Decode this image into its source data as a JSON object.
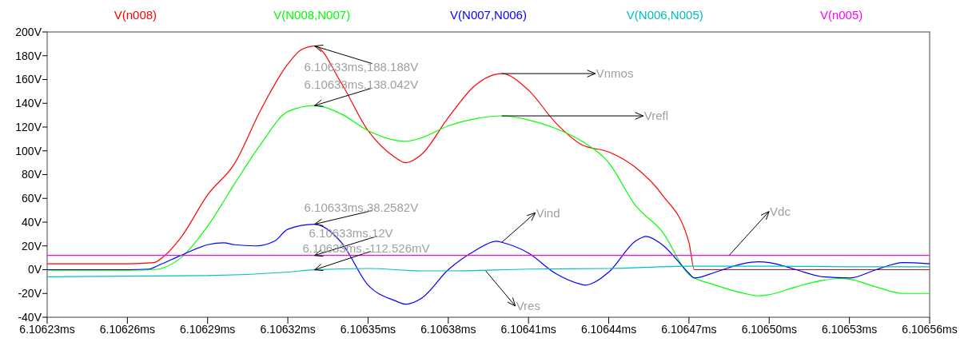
{
  "chart_data": {
    "type": "line",
    "legend": "top",
    "xlim": [
      6.10623,
      6.10656
    ],
    "xticks": [
      {
        "value": 6.10623,
        "label": "6.10623ms"
      },
      {
        "value": 6.10626,
        "label": "6.10626ms"
      },
      {
        "value": 6.10629,
        "label": "6.10629ms"
      },
      {
        "value": 6.10632,
        "label": "6.10632ms"
      },
      {
        "value": 6.10635,
        "label": "6.10635ms"
      },
      {
        "value": 6.10638,
        "label": "6.10638ms"
      },
      {
        "value": 6.10641,
        "label": "6.10641ms"
      },
      {
        "value": 6.10644,
        "label": "6.10644ms"
      },
      {
        "value": 6.10647,
        "label": "6.10647ms"
      },
      {
        "value": 6.1065,
        "label": "6.10650ms"
      },
      {
        "value": 6.10653,
        "label": "6.10653ms"
      },
      {
        "value": 6.10656,
        "label": "6.10656ms"
      }
    ],
    "ylim": [
      -40,
      200
    ],
    "yticks": [
      {
        "value": -40,
        "label": "-40V"
      },
      {
        "value": -20,
        "label": "-20V"
      },
      {
        "value": 0,
        "label": "0V"
      },
      {
        "value": 20,
        "label": "20V"
      },
      {
        "value": 40,
        "label": "40V"
      },
      {
        "value": 60,
        "label": "60V"
      },
      {
        "value": 80,
        "label": "80V"
      },
      {
        "value": 100,
        "label": "100V"
      },
      {
        "value": 120,
        "label": "120V"
      },
      {
        "value": 140,
        "label": "140V"
      },
      {
        "value": 160,
        "label": "160V"
      },
      {
        "value": 180,
        "label": "180V"
      },
      {
        "value": 200,
        "label": "200V"
      }
    ],
    "series": [
      {
        "name": "V(n008)",
        "color": "#ff0000",
        "x": [
          6.10623,
          6.10624,
          6.10625,
          6.10626,
          6.10627,
          6.106274,
          6.10628,
          6.10629,
          6.1063,
          6.10631,
          6.10632,
          6.106325,
          6.10633,
          6.10634,
          6.10635,
          6.10636,
          6.106364,
          6.10637,
          6.10638,
          6.10639,
          6.1064,
          6.10641,
          6.10642,
          6.10643,
          6.10644,
          6.10645,
          6.10646,
          6.10647,
          6.106472,
          6.10656
        ],
        "values": [
          5,
          5,
          5,
          5,
          6,
          12,
          27,
          63,
          89,
          135,
          173,
          185,
          188.188,
          157,
          117,
          94.7,
          90,
          97,
          128,
          155,
          165,
          151,
          124,
          105,
          99,
          86,
          63,
          23,
          0,
          0
        ]
      },
      {
        "name": "V(N008,N007)",
        "color": "#00ff00",
        "x": [
          6.10623,
          6.10626,
          6.10627,
          6.10628,
          6.10629,
          6.1063,
          6.10631,
          6.10632,
          6.10633,
          6.10634,
          6.10635,
          6.10636,
          6.106364,
          6.10637,
          6.10638,
          6.10639,
          6.1064,
          6.10641,
          6.10642,
          6.10643,
          6.10644,
          6.10645,
          6.10646,
          6.10647,
          6.10648,
          6.10649,
          6.106496,
          6.1065,
          6.10651,
          6.10652,
          6.106526,
          6.10653,
          6.10654,
          6.10655,
          6.10656
        ],
        "values": [
          -0.5,
          -0.5,
          0,
          10,
          36.5,
          72,
          106,
          133,
          138.042,
          131,
          117,
          109,
          108,
          111,
          121,
          127,
          129.4,
          126,
          119,
          108,
          90,
          54,
          32,
          -4,
          -13,
          -19.6,
          -22,
          -21,
          -14.5,
          -9,
          -7.4,
          -8,
          -14.5,
          -20,
          -20
        ]
      },
      {
        "name": "V(N007,N006)",
        "color": "#0000ff",
        "x": [
          6.10623,
          6.10626,
          6.106268,
          6.106272,
          6.10628,
          6.10629,
          6.106296,
          6.1063,
          6.106308,
          6.106315,
          6.10632,
          6.10633,
          6.10634,
          6.10635,
          6.10636,
          6.106364,
          6.10637,
          6.10638,
          6.10639,
          6.106398,
          6.1064,
          6.10641,
          6.10642,
          6.10643,
          6.106431,
          6.10644,
          6.10645,
          6.106454,
          6.10646,
          6.10647,
          6.106472,
          6.10648,
          6.10649,
          6.106496,
          6.1065,
          6.10651,
          6.10652,
          6.10653,
          6.10654,
          6.10655,
          6.10656
        ],
        "values": [
          0,
          0,
          0.5,
          4,
          12,
          21,
          22.6,
          21,
          20,
          24,
          34,
          38.2582,
          23,
          -13,
          -26,
          -29,
          -24,
          0,
          16,
          24,
          23,
          14,
          -3,
          -12.5,
          -13,
          -2,
          24,
          28,
          21,
          -3,
          -7,
          -2,
          5,
          6.6,
          6,
          0,
          -6,
          -7,
          0,
          6,
          5
        ]
      },
      {
        "name": "V(N006,N005)",
        "color": "#00c0c0",
        "x": [
          6.10623,
          6.10629,
          6.10632,
          6.10633,
          6.10635,
          6.10637,
          6.10638,
          6.10641,
          6.10644,
          6.10647,
          6.1065,
          6.10653,
          6.10656
        ],
        "values": [
          -6,
          -5,
          -2,
          -0.112526,
          1,
          -1,
          -1,
          0.5,
          1,
          3,
          3,
          2.5,
          2.5
        ]
      },
      {
        "name": "V(n005)",
        "color": "#ff00ff",
        "x": [
          6.10623,
          6.10656
        ],
        "values": [
          12,
          12
        ]
      }
    ],
    "annotations": [
      {
        "text": "6.10633ms,188.188V",
        "x": 6.10633,
        "y": 188.188
      },
      {
        "text": "6.10633ms,138.042V",
        "x": 6.10633,
        "y": 138.042
      },
      {
        "text": "6.10633ms,38.2582V",
        "x": 6.10633,
        "y": 38.2582
      },
      {
        "text": "6.10633ms,12V",
        "x": 6.10633,
        "y": 12
      },
      {
        "text": "6.10633ms,-112.526mV",
        "x": 6.10633,
        "y": -0.112526
      },
      {
        "text": "Vnmos",
        "x": 6.1064,
        "y": 165
      },
      {
        "text": "Vrefl",
        "x": 6.1064,
        "y": 129.4
      },
      {
        "text": "Vind",
        "x": 6.1064,
        "y": 23
      },
      {
        "text": "Vres",
        "x": 6.106394,
        "y": -1
      },
      {
        "text": "Vdc",
        "x": 6.106485,
        "y": 12
      }
    ]
  }
}
